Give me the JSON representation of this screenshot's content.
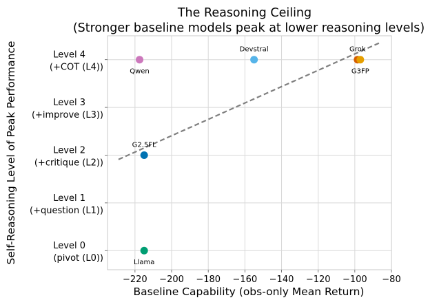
{
  "chart_data": {
    "type": "scatter",
    "title": "The Reasoning Ceiling",
    "subtitle": "(Stronger baseline models peak at lower reasoning levels)",
    "xlabel": "Baseline Capability (obs-only Mean Return)",
    "ylabel": "Self-Reasoning Level of Peak Performance",
    "xlim": [
      -235,
      -80
    ],
    "ylim": [
      -0.4,
      4.5
    ],
    "grid": true,
    "x_ticks": [
      {
        "value": -220,
        "label": "−220"
      },
      {
        "value": -200,
        "label": "−200"
      },
      {
        "value": -180,
        "label": "−180"
      },
      {
        "value": -160,
        "label": "−160"
      },
      {
        "value": -140,
        "label": "−140"
      },
      {
        "value": -120,
        "label": "−120"
      },
      {
        "value": -100,
        "label": "−100"
      },
      {
        "value": -80,
        "label": "−80"
      }
    ],
    "y_ticks": [
      {
        "value": 0,
        "line1": "Level 0",
        "line2": "(pivot (L0))"
      },
      {
        "value": 1,
        "line1": "Level 1",
        "line2": "(+question (L1))"
      },
      {
        "value": 2,
        "line1": "Level 2",
        "line2": "(+critique (L2))"
      },
      {
        "value": 3,
        "line1": "Level 3",
        "line2": "(+improve (L3))"
      },
      {
        "value": 4,
        "line1": "Level 4",
        "line2": "(+COT (L4))"
      }
    ],
    "points": [
      {
        "label": "Qwen",
        "x": -217.5,
        "y": 4,
        "color": "#cc78bc",
        "label_pos": "below"
      },
      {
        "label": "Devstral",
        "x": -155,
        "y": 4,
        "color": "#56b4e9",
        "label_pos": "above"
      },
      {
        "label": "Grok",
        "x": -98.5,
        "y": 4,
        "color": "#d55e00",
        "label_pos": "above"
      },
      {
        "label": "G3FP",
        "x": -97,
        "y": 4,
        "color": "#e69f00",
        "label_pos": "below"
      },
      {
        "label": "G2.5FL",
        "x": -215,
        "y": 2,
        "color": "#0072b2",
        "label_pos": "above"
      },
      {
        "label": "Llama",
        "x": -215,
        "y": 0,
        "color": "#009e73",
        "label_pos": "below"
      }
    ],
    "trend_line": {
      "style": "dashed",
      "color": "#7f7f7f",
      "x": [
        -229,
        -86
      ],
      "y": [
        1.91,
        4.36
      ]
    }
  }
}
